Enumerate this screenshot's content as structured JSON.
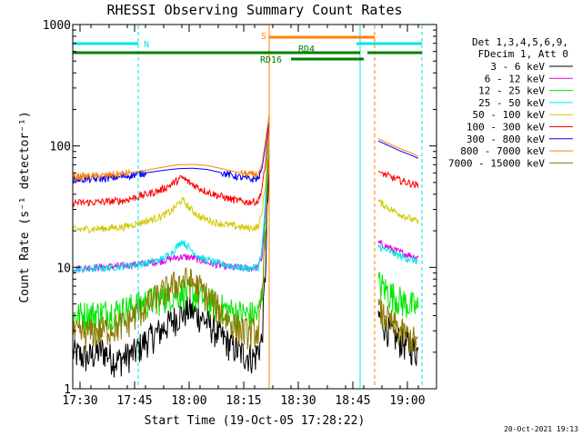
{
  "chart_data": {
    "type": "line",
    "title": "RHESSI Observing Summary Count Rates",
    "xlabel": "Start Time (19-Oct-05 17:28:22)",
    "ylabel": "Count Rate (s⁻¹ detector⁻¹)",
    "y_scale": "log",
    "xlim": [
      "17:28",
      "19:08"
    ],
    "ylim": [
      1,
      1000
    ],
    "x_ticks": [
      "17:30",
      "17:45",
      "18:00",
      "18:15",
      "18:30",
      "18:45",
      "19:00"
    ],
    "y_ticks": [
      "1",
      "10",
      "100",
      "1000"
    ],
    "grid": false,
    "legend_position": "right",
    "legend_header": [
      "Det 1,3,4,5,6,9,",
      "FDecim 1, Att 0"
    ],
    "gaps": [
      [
        "18:22",
        "18:52"
      ]
    ],
    "series": [
      {
        "name": "3 - 6 keV",
        "color": "#000000",
        "points": [
          [
            "17:28",
            2
          ],
          [
            "17:32",
            1.8
          ],
          [
            "17:36",
            2.1
          ],
          [
            "17:40",
            1.7
          ],
          [
            "17:45",
            2
          ],
          [
            "17:48",
            2.5
          ],
          [
            "17:52",
            3
          ],
          [
            "17:55",
            3.6
          ],
          [
            "17:58",
            4.2
          ],
          [
            "18:00",
            4.5
          ],
          [
            "18:03",
            4
          ],
          [
            "18:06",
            3.3
          ],
          [
            "18:10",
            2.5
          ],
          [
            "18:14",
            2
          ],
          [
            "18:18",
            1.8
          ],
          [
            "18:20",
            2.5
          ],
          [
            "18:21",
            10
          ],
          [
            "18:22",
            80
          ],
          [
            "18:52",
            4
          ],
          [
            "18:55",
            3
          ],
          [
            "18:58",
            2.5
          ],
          [
            "19:01",
            2.2
          ],
          [
            "19:03",
            2
          ]
        ]
      },
      {
        "name": "6 - 12 keV",
        "color": "#e600e6",
        "points": [
          [
            "17:28",
            9.8
          ],
          [
            "17:35",
            10
          ],
          [
            "17:42",
            10.3
          ],
          [
            "17:48",
            10.8
          ],
          [
            "17:52",
            11.2
          ],
          [
            "17:55",
            11.8
          ],
          [
            "17:58",
            12.2
          ],
          [
            "18:01",
            12
          ],
          [
            "18:04",
            11.2
          ],
          [
            "18:08",
            10.4
          ],
          [
            "18:12",
            10
          ],
          [
            "18:16",
            9.8
          ],
          [
            "18:19",
            10
          ],
          [
            "18:20",
            12
          ],
          [
            "18:21",
            30
          ],
          [
            "18:22",
            130
          ],
          [
            "18:52",
            16
          ],
          [
            "18:55",
            14.5
          ],
          [
            "18:58",
            13.3
          ],
          [
            "19:01",
            12.5
          ],
          [
            "19:03",
            12
          ]
        ]
      },
      {
        "name": "12 - 25 keV",
        "color": "#00e600",
        "points": [
          [
            "17:28",
            4
          ],
          [
            "17:35",
            4.2
          ],
          [
            "17:42",
            4.5
          ],
          [
            "17:48",
            5.2
          ],
          [
            "17:52",
            5.6
          ],
          [
            "17:55",
            6
          ],
          [
            "17:58",
            6.3
          ],
          [
            "18:01",
            6.1
          ],
          [
            "18:04",
            5.6
          ],
          [
            "18:08",
            4.8
          ],
          [
            "18:12",
            4.3
          ],
          [
            "18:16",
            4.1
          ],
          [
            "18:19",
            4.1
          ],
          [
            "18:20",
            6
          ],
          [
            "18:21",
            25
          ],
          [
            "18:22",
            120
          ],
          [
            "18:52",
            7.5
          ],
          [
            "18:55",
            6.2
          ],
          [
            "18:58",
            5.4
          ],
          [
            "19:01",
            4.9
          ],
          [
            "19:03",
            4.6
          ]
        ]
      },
      {
        "name": "25 - 50 keV",
        "color": "#00e6e6",
        "points": [
          [
            "17:28",
            9.5
          ],
          [
            "17:35",
            9.8
          ],
          [
            "17:42",
            10.2
          ],
          [
            "17:48",
            10.8
          ],
          [
            "17:52",
            11.5
          ],
          [
            "17:55",
            13
          ],
          [
            "17:58",
            16.5
          ],
          [
            "18:00",
            14.5
          ],
          [
            "18:03",
            12
          ],
          [
            "18:07",
            11
          ],
          [
            "18:12",
            10.2
          ],
          [
            "18:16",
            9.8
          ],
          [
            "18:19",
            10
          ],
          [
            "18:20",
            14
          ],
          [
            "18:21",
            35
          ],
          [
            "18:22",
            140
          ],
          [
            "18:52",
            15
          ],
          [
            "18:55",
            13.5
          ],
          [
            "18:58",
            12.4
          ],
          [
            "19:01",
            11.6
          ],
          [
            "19:03",
            11.2
          ]
        ]
      },
      {
        "name": "50 - 100 keV",
        "color": "#d2c800",
        "points": [
          [
            "17:28",
            20.5
          ],
          [
            "17:35",
            20.8
          ],
          [
            "17:42",
            21.5
          ],
          [
            "17:47",
            23.5
          ],
          [
            "17:52",
            26
          ],
          [
            "17:55",
            29
          ],
          [
            "17:58",
            36
          ],
          [
            "18:00",
            31
          ],
          [
            "18:03",
            26
          ],
          [
            "18:07",
            23.5
          ],
          [
            "18:12",
            22
          ],
          [
            "18:16",
            21
          ],
          [
            "18:19",
            21.5
          ],
          [
            "18:20",
            28
          ],
          [
            "18:21",
            50
          ],
          [
            "18:22",
            150
          ],
          [
            "18:52",
            35
          ],
          [
            "18:55",
            30.5
          ],
          [
            "18:58",
            27.5
          ],
          [
            "19:01",
            25
          ],
          [
            "19:03",
            23.5
          ]
        ]
      },
      {
        "name": "100 - 300 keV",
        "color": "#ff0000",
        "points": [
          [
            "17:28",
            34
          ],
          [
            "17:35",
            34.5
          ],
          [
            "17:42",
            35.5
          ],
          [
            "17:47",
            39
          ],
          [
            "17:52",
            43
          ],
          [
            "17:55",
            48
          ],
          [
            "17:58",
            55
          ],
          [
            "18:00",
            50
          ],
          [
            "18:04",
            43
          ],
          [
            "18:08",
            39
          ],
          [
            "18:12",
            36
          ],
          [
            "18:16",
            34.5
          ],
          [
            "18:19",
            35
          ],
          [
            "18:20",
            45
          ],
          [
            "18:21",
            70
          ],
          [
            "18:22",
            160
          ],
          [
            "18:52",
            62
          ],
          [
            "18:55",
            56
          ],
          [
            "18:58",
            52
          ],
          [
            "19:01",
            49
          ],
          [
            "19:03",
            47
          ]
        ]
      },
      {
        "name": "300 - 800 keV",
        "color": "#0000ff",
        "points": [
          [
            "17:28",
            53
          ],
          [
            "17:35",
            53.5
          ],
          [
            "17:42",
            56
          ],
          [
            "17:48",
            60
          ],
          [
            "17:53",
            63
          ],
          [
            "17:57",
            65
          ],
          [
            "18:01",
            65.5
          ],
          [
            "18:05",
            64
          ],
          [
            "18:09",
            60
          ],
          [
            "18:13",
            56
          ],
          [
            "18:17",
            53
          ],
          [
            "18:19",
            54
          ],
          [
            "18:20",
            65
          ],
          [
            "18:21",
            100
          ],
          [
            "18:22",
            170
          ],
          [
            "18:52",
            110
          ],
          [
            "18:55",
            100
          ],
          [
            "18:58",
            91
          ],
          [
            "19:01",
            84
          ],
          [
            "19:03",
            79
          ]
        ]
      },
      {
        "name": "800 - 7000 keV",
        "color": "#ff8000",
        "points": [
          [
            "17:28",
            56
          ],
          [
            "17:35",
            56.5
          ],
          [
            "17:42",
            59
          ],
          [
            "17:48",
            63
          ],
          [
            "17:53",
            67
          ],
          [
            "17:57",
            70
          ],
          [
            "18:01",
            70.5
          ],
          [
            "18:05",
            69
          ],
          [
            "18:09",
            65
          ],
          [
            "18:13",
            61
          ],
          [
            "18:17",
            58
          ],
          [
            "18:19",
            59
          ],
          [
            "18:20",
            70
          ],
          [
            "18:21",
            110
          ],
          [
            "18:22",
            180
          ],
          [
            "18:52",
            115
          ],
          [
            "18:55",
            104
          ],
          [
            "18:58",
            95
          ],
          [
            "19:01",
            88
          ],
          [
            "19:03",
            82
          ]
        ]
      },
      {
        "name": "7000 - 15000 keV",
        "color": "#8c7800",
        "points": [
          [
            "17:28",
            2.8
          ],
          [
            "17:35",
            3
          ],
          [
            "17:42",
            3.4
          ],
          [
            "17:48",
            4.8
          ],
          [
            "17:52",
            6
          ],
          [
            "17:55",
            7
          ],
          [
            "17:58",
            7.8
          ],
          [
            "18:00",
            7.8
          ],
          [
            "18:03",
            6.8
          ],
          [
            "18:07",
            5
          ],
          [
            "18:11",
            3.6
          ],
          [
            "18:15",
            3
          ],
          [
            "18:19",
            3
          ],
          [
            "18:20",
            5
          ],
          [
            "18:21",
            20
          ],
          [
            "18:22",
            110
          ],
          [
            "18:52",
            4.5
          ],
          [
            "18:55",
            3.6
          ],
          [
            "18:58",
            3
          ],
          [
            "19:01",
            2.6
          ],
          [
            "19:03",
            2.4
          ]
        ]
      }
    ],
    "state_bars": [
      {
        "label": "N",
        "color": "#00e6e6",
        "segments": [
          [
            "17:28",
            "17:46"
          ],
          [
            "18:46",
            "19:04"
          ]
        ]
      },
      {
        "label": "S",
        "color": "#ff8000",
        "segments": [
          [
            "18:22",
            "18:51"
          ]
        ]
      },
      {
        "label": "RD4",
        "color": "#008000",
        "segments": [
          [
            "17:28",
            "18:47"
          ],
          [
            "18:49",
            "19:04"
          ]
        ]
      },
      {
        "label": "RD16",
        "color": "#008000",
        "segments": [
          [
            "18:28",
            "18:48"
          ]
        ]
      }
    ],
    "vertical_lines": [
      {
        "time": "17:46",
        "color": "#00e6e6",
        "style": "dashed"
      },
      {
        "time": "18:22",
        "color": "#ff8000",
        "style": "solid"
      },
      {
        "time": "18:47",
        "color": "#00e6e6",
        "style": "solid"
      },
      {
        "time": "18:51",
        "color": "#ff8000",
        "style": "dashed"
      },
      {
        "time": "19:04",
        "color": "#00e6e6",
        "style": "dashed"
      }
    ]
  },
  "footer": {
    "timestamp": "20-Oct-2021 19:13"
  }
}
